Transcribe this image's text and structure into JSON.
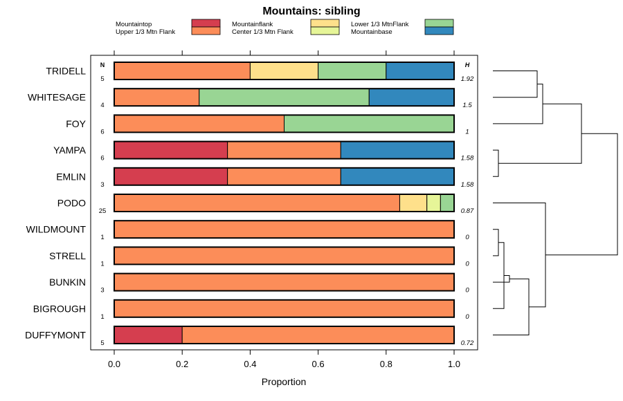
{
  "chart_data": {
    "type": "bar",
    "stacked": true,
    "orientation": "horizontal",
    "title": "Mountains: sibling",
    "xlabel": "Proportion",
    "xlim": [
      0,
      1
    ],
    "xticks": [
      "0.0",
      "0.2",
      "0.4",
      "0.6",
      "0.8",
      "1.0"
    ],
    "n_header": "N",
    "h_header": "H",
    "legend": [
      {
        "name": "Mountaintop",
        "color": "#d53e4f"
      },
      {
        "name": "Upper 1/3 Mtn Flank",
        "color": "#fc8d59"
      },
      {
        "name": "Mountainflank",
        "color": "#fee08b"
      },
      {
        "name": "Center 1/3 Mtn Flank",
        "color": "#e6f598"
      },
      {
        "name": "Lower 1/3 MtnFlank",
        "color": "#99d594"
      },
      {
        "name": "Mountainbase",
        "color": "#3288bd"
      }
    ],
    "categories": [
      "TRIDELL",
      "WHITESAGE",
      "FOY",
      "YAMPA",
      "EMLIN",
      "PODO",
      "WILDMOUNT",
      "STRELL",
      "BUNKIN",
      "BIGROUGH",
      "DUFFYMONT"
    ],
    "n": [
      "5",
      "4",
      "6",
      "6",
      "3",
      "25",
      "1",
      "1",
      "3",
      "1",
      "5"
    ],
    "h": [
      "1.92",
      "1.5",
      "1",
      "1.58",
      "1.58",
      "0.87",
      "0",
      "0",
      "0",
      "0",
      "0.72"
    ],
    "series": [
      {
        "name": "Mountaintop",
        "values": [
          0,
          0,
          0,
          0.3333,
          0.3333,
          0,
          0,
          0,
          0,
          0,
          0.2
        ]
      },
      {
        "name": "Upper 1/3 Mtn Flank",
        "values": [
          0.4,
          0.25,
          0.5,
          0.3333,
          0.3333,
          0.84,
          1,
          1,
          1,
          1,
          0.8
        ]
      },
      {
        "name": "Mountainflank",
        "values": [
          0.2,
          0,
          0,
          0,
          0,
          0.08,
          0,
          0,
          0,
          0,
          0
        ]
      },
      {
        "name": "Center 1/3 Mtn Flank",
        "values": [
          0,
          0,
          0,
          0,
          0,
          0.04,
          0,
          0,
          0,
          0,
          0
        ]
      },
      {
        "name": "Lower 1/3 MtnFlank",
        "values": [
          0.2,
          0.5,
          0.5,
          0,
          0,
          0.04,
          0,
          0,
          0,
          0,
          0
        ]
      },
      {
        "name": "Mountainbase",
        "values": [
          0.2,
          0.25,
          0,
          0.3333,
          0.3333,
          0,
          0,
          0,
          0,
          0,
          0
        ]
      }
    ],
    "dendrogram": {
      "merges": [
        {
          "a": "YAMPA",
          "b": "EMLIN",
          "height": 0.02
        },
        {
          "a": "TRIDELL",
          "b": "WHITESAGE",
          "height": 0.16
        },
        {
          "a": "m2",
          "b": "FOY",
          "height": 0.18
        },
        {
          "a": "m3",
          "b": "m1",
          "height": 0.32
        },
        {
          "a": "WILDMOUNT",
          "b": "STRELL",
          "height": 0.02
        },
        {
          "a": "m5",
          "b": "BIGROUGH",
          "height": 0.04
        },
        {
          "a": "m6",
          "b": "BUNKIN",
          "height": 0.06
        },
        {
          "a": "m7",
          "b": "DUFFYMONT",
          "height": 0.13
        },
        {
          "a": "PODO",
          "b": "m8",
          "height": 0.19
        },
        {
          "a": "m4",
          "b": "m9",
          "height": 0.45
        }
      ]
    }
  }
}
